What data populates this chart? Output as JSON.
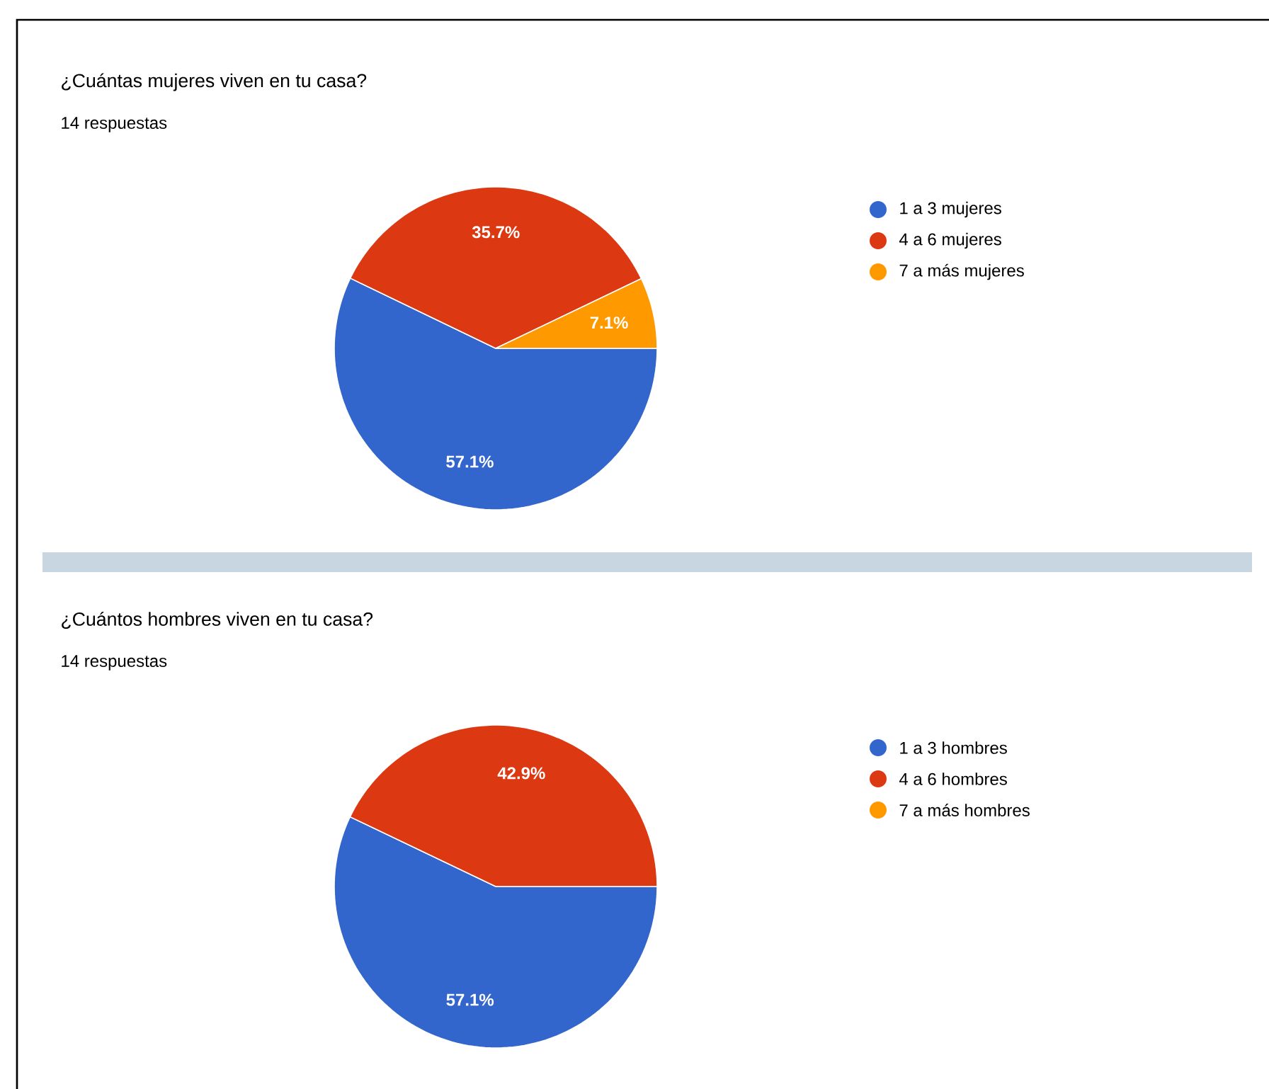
{
  "chart_data": [
    {
      "type": "pie",
      "title": "¿Cuántas mujeres viven en tu casa?",
      "subtitle": "14 respuestas",
      "categories": [
        "1 a 3 mujeres",
        "4 a 6 mujeres",
        "7 a más mujeres"
      ],
      "values": [
        57.1,
        35.7,
        7.1
      ],
      "value_labels": [
        "57.1%",
        "35.7%",
        "7.1%"
      ],
      "colors": [
        "#3366cc",
        "#dc3912",
        "#ff9900"
      ],
      "legend": "right"
    },
    {
      "type": "pie",
      "title": "¿Cuántos hombres viven en tu casa?",
      "subtitle": "14 respuestas",
      "categories": [
        "1 a 3 hombres",
        "4 a 6 hombres",
        "7 a más hombres"
      ],
      "values": [
        57.1,
        42.9,
        0
      ],
      "value_labels": [
        "57.1%",
        "42.9%",
        null
      ],
      "colors": [
        "#3366cc",
        "#dc3912",
        "#ff9900"
      ],
      "legend": "right"
    }
  ]
}
